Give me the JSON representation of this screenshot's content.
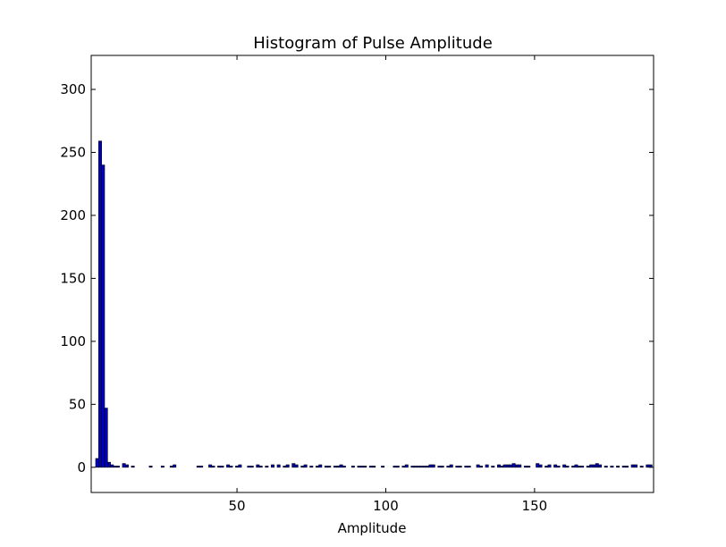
{
  "chart_data": {
    "type": "bar",
    "title": "Histogram of Pulse Amplitude",
    "xlabel": "Amplitude",
    "ylabel": "",
    "xlim": [
      1,
      190
    ],
    "ylim": [
      -20,
      327
    ],
    "xticks": [
      50,
      100,
      150
    ],
    "yticks": [
      0,
      50,
      100,
      150,
      200,
      250,
      300
    ],
    "bar_color": "#0000bf",
    "grid": false,
    "bin_width": 1,
    "bins": [
      [
        3,
        7
      ],
      [
        4,
        259
      ],
      [
        5,
        240
      ],
      [
        6,
        47
      ],
      [
        7,
        4
      ],
      [
        8,
        2
      ],
      [
        9,
        1
      ],
      [
        10,
        1
      ],
      [
        12,
        3
      ],
      [
        13,
        2
      ],
      [
        15,
        1
      ],
      [
        21,
        1
      ],
      [
        25,
        1
      ],
      [
        28,
        1
      ],
      [
        29,
        2
      ],
      [
        37,
        1
      ],
      [
        38,
        1
      ],
      [
        41,
        2
      ],
      [
        42,
        1
      ],
      [
        44,
        1
      ],
      [
        45,
        1
      ],
      [
        47,
        2
      ],
      [
        48,
        1
      ],
      [
        50,
        1
      ],
      [
        51,
        2
      ],
      [
        54,
        1
      ],
      [
        55,
        1
      ],
      [
        57,
        2
      ],
      [
        58,
        1
      ],
      [
        60,
        1
      ],
      [
        62,
        2
      ],
      [
        64,
        2
      ],
      [
        66,
        1
      ],
      [
        67,
        2
      ],
      [
        69,
        3
      ],
      [
        70,
        2
      ],
      [
        72,
        1
      ],
      [
        73,
        2
      ],
      [
        75,
        1
      ],
      [
        77,
        1
      ],
      [
        78,
        2
      ],
      [
        80,
        1
      ],
      [
        81,
        1
      ],
      [
        83,
        1
      ],
      [
        84,
        1
      ],
      [
        85,
        2
      ],
      [
        86,
        1
      ],
      [
        89,
        1
      ],
      [
        91,
        1
      ],
      [
        92,
        1
      ],
      [
        93,
        1
      ],
      [
        95,
        1
      ],
      [
        96,
        1
      ],
      [
        99,
        1
      ],
      [
        103,
        1
      ],
      [
        104,
        1
      ],
      [
        106,
        1
      ],
      [
        107,
        2
      ],
      [
        109,
        1
      ],
      [
        110,
        1
      ],
      [
        111,
        1
      ],
      [
        112,
        1
      ],
      [
        113,
        1
      ],
      [
        114,
        1
      ],
      [
        115,
        2
      ],
      [
        116,
        2
      ],
      [
        118,
        1
      ],
      [
        119,
        1
      ],
      [
        121,
        1
      ],
      [
        122,
        2
      ],
      [
        124,
        1
      ],
      [
        125,
        1
      ],
      [
        127,
        1
      ],
      [
        128,
        1
      ],
      [
        131,
        2
      ],
      [
        132,
        1
      ],
      [
        134,
        2
      ],
      [
        136,
        1
      ],
      [
        138,
        2
      ],
      [
        139,
        1
      ],
      [
        140,
        2
      ],
      [
        141,
        2
      ],
      [
        142,
        2
      ],
      [
        143,
        3
      ],
      [
        144,
        2
      ],
      [
        145,
        2
      ],
      [
        147,
        1
      ],
      [
        148,
        1
      ],
      [
        151,
        3
      ],
      [
        152,
        2
      ],
      [
        154,
        1
      ],
      [
        155,
        2
      ],
      [
        157,
        2
      ],
      [
        158,
        1
      ],
      [
        160,
        2
      ],
      [
        161,
        1
      ],
      [
        163,
        1
      ],
      [
        164,
        2
      ],
      [
        165,
        1
      ],
      [
        166,
        1
      ],
      [
        168,
        1
      ],
      [
        169,
        2
      ],
      [
        170,
        2
      ],
      [
        171,
        3
      ],
      [
        172,
        2
      ],
      [
        174,
        1
      ],
      [
        176,
        1
      ],
      [
        178,
        1
      ],
      [
        180,
        1
      ],
      [
        181,
        1
      ],
      [
        183,
        2
      ],
      [
        184,
        2
      ],
      [
        186,
        1
      ],
      [
        188,
        2
      ],
      [
        189,
        2
      ]
    ]
  }
}
